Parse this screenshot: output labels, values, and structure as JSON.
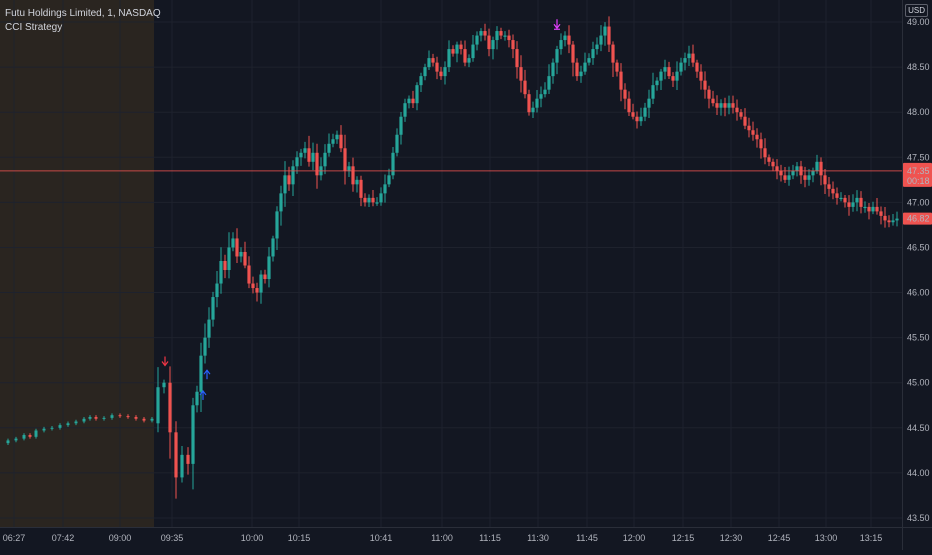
{
  "legend": {
    "symbol_line": "Futu Holdings Limited, 1, NASDAQ",
    "study_line": "CCI Strategy"
  },
  "currency_label": "USD",
  "price_tag": {
    "price": "47.35",
    "countdown": "00:18"
  },
  "last_price_tag": "46.82",
  "colors": {
    "background": "#131722",
    "grid": "#1e222d",
    "up": "#26a69a",
    "down": "#ef5350",
    "premarket_bg": "#2a2520",
    "price_line": "#ef5350",
    "long_arrow": "#2962ff",
    "short_arrow": "#f23645",
    "exit_arrow": "#e040fb"
  },
  "chart_data": {
    "type": "candlestick",
    "y_range": [
      43.4,
      49.2
    ],
    "y_ticks": [
      "43.50",
      "44.00",
      "44.50",
      "45.00",
      "45.50",
      "46.00",
      "46.50",
      "47.00",
      "47.50",
      "48.00",
      "48.50",
      "49.00"
    ],
    "x_ticks": [
      "06:27",
      "07:42",
      "09:00",
      "09:35",
      "10:00",
      "10:15",
      "10:41",
      "11:00",
      "11:15",
      "11:30",
      "11:45",
      "12:00",
      "12:15",
      "12:30",
      "12:45",
      "13:00",
      "13:15"
    ],
    "premarket_until": "09:30",
    "current_price": 47.35,
    "last_price": 46.82,
    "premarket_path": [
      [
        0,
        44.33
      ],
      [
        8,
        44.36
      ],
      [
        16,
        44.38
      ],
      [
        24,
        44.42
      ],
      [
        30,
        44.4
      ],
      [
        36,
        44.47
      ],
      [
        44,
        44.49
      ],
      [
        52,
        44.5
      ],
      [
        60,
        44.53
      ],
      [
        68,
        44.55
      ],
      [
        76,
        44.57
      ],
      [
        84,
        44.6
      ],
      [
        90,
        44.62
      ],
      [
        96,
        44.6
      ],
      [
        104,
        44.61
      ],
      [
        112,
        44.64
      ],
      [
        120,
        44.63
      ],
      [
        128,
        44.62
      ],
      [
        136,
        44.6
      ],
      [
        144,
        44.58
      ],
      [
        152,
        44.6
      ]
    ],
    "price_path": [
      [
        154,
        44.55
      ],
      [
        160,
        44.95
      ],
      [
        166,
        45.0
      ],
      [
        172,
        44.45
      ],
      [
        178,
        43.95
      ],
      [
        184,
        44.2
      ],
      [
        190,
        44.1
      ],
      [
        194,
        44.75
      ],
      [
        198,
        44.9
      ],
      [
        202,
        45.3
      ],
      [
        206,
        45.5
      ],
      [
        210,
        45.7
      ],
      [
        214,
        45.95
      ],
      [
        218,
        46.1
      ],
      [
        222,
        46.35
      ],
      [
        226,
        46.25
      ],
      [
        230,
        46.5
      ],
      [
        234,
        46.6
      ],
      [
        238,
        46.4
      ],
      [
        242,
        46.45
      ],
      [
        246,
        46.3
      ],
      [
        250,
        46.1
      ],
      [
        254,
        46.05
      ],
      [
        258,
        46.0
      ],
      [
        262,
        46.2
      ],
      [
        266,
        46.15
      ],
      [
        270,
        46.4
      ],
      [
        274,
        46.6
      ],
      [
        278,
        46.9
      ],
      [
        282,
        47.1
      ],
      [
        286,
        47.3
      ],
      [
        290,
        47.2
      ],
      [
        294,
        47.4
      ],
      [
        298,
        47.5
      ],
      [
        302,
        47.55
      ],
      [
        306,
        47.6
      ],
      [
        310,
        47.45
      ],
      [
        314,
        47.55
      ],
      [
        318,
        47.3
      ],
      [
        322,
        47.4
      ],
      [
        326,
        47.55
      ],
      [
        330,
        47.65
      ],
      [
        334,
        47.7
      ],
      [
        338,
        47.75
      ],
      [
        342,
        47.6
      ],
      [
        346,
        47.35
      ],
      [
        350,
        47.4
      ],
      [
        354,
        47.2
      ],
      [
        358,
        47.25
      ],
      [
        362,
        47.05
      ],
      [
        366,
        47.0
      ],
      [
        370,
        47.05
      ],
      [
        374,
        47.0
      ],
      [
        378,
        47.0
      ],
      [
        382,
        47.1
      ],
      [
        386,
        47.2
      ],
      [
        390,
        47.3
      ],
      [
        394,
        47.55
      ],
      [
        398,
        47.75
      ],
      [
        402,
        47.95
      ],
      [
        406,
        48.1
      ],
      [
        410,
        48.15
      ],
      [
        414,
        48.1
      ],
      [
        418,
        48.3
      ],
      [
        422,
        48.4
      ],
      [
        426,
        48.5
      ],
      [
        430,
        48.6
      ],
      [
        434,
        48.55
      ],
      [
        438,
        48.45
      ],
      [
        442,
        48.4
      ],
      [
        446,
        48.5
      ],
      [
        450,
        48.7
      ],
      [
        454,
        48.65
      ],
      [
        458,
        48.75
      ],
      [
        462,
        48.7
      ],
      [
        466,
        48.55
      ],
      [
        470,
        48.6
      ],
      [
        474,
        48.75
      ],
      [
        478,
        48.85
      ],
      [
        482,
        48.9
      ],
      [
        486,
        48.85
      ],
      [
        490,
        48.7
      ],
      [
        494,
        48.8
      ],
      [
        498,
        48.9
      ],
      [
        502,
        48.85
      ],
      [
        506,
        48.85
      ],
      [
        510,
        48.8
      ],
      [
        514,
        48.7
      ],
      [
        518,
        48.5
      ],
      [
        522,
        48.35
      ],
      [
        526,
        48.2
      ],
      [
        530,
        48.0
      ],
      [
        534,
        48.05
      ],
      [
        538,
        48.15
      ],
      [
        542,
        48.2
      ],
      [
        546,
        48.25
      ],
      [
        550,
        48.4
      ],
      [
        554,
        48.55
      ],
      [
        558,
        48.7
      ],
      [
        562,
        48.8
      ],
      [
        566,
        48.85
      ],
      [
        570,
        48.75
      ],
      [
        574,
        48.55
      ],
      [
        578,
        48.4
      ],
      [
        582,
        48.45
      ],
      [
        586,
        48.55
      ],
      [
        590,
        48.6
      ],
      [
        594,
        48.7
      ],
      [
        598,
        48.75
      ],
      [
        602,
        48.85
      ],
      [
        606,
        48.95
      ],
      [
        610,
        48.75
      ],
      [
        614,
        48.55
      ],
      [
        618,
        48.45
      ],
      [
        622,
        48.25
      ],
      [
        626,
        48.15
      ],
      [
        630,
        48.0
      ],
      [
        634,
        47.95
      ],
      [
        638,
        47.9
      ],
      [
        642,
        47.95
      ],
      [
        646,
        48.05
      ],
      [
        650,
        48.15
      ],
      [
        654,
        48.3
      ],
      [
        658,
        48.35
      ],
      [
        662,
        48.45
      ],
      [
        666,
        48.5
      ],
      [
        670,
        48.4
      ],
      [
        674,
        48.35
      ],
      [
        678,
        48.45
      ],
      [
        682,
        48.55
      ],
      [
        686,
        48.6
      ],
      [
        690,
        48.65
      ],
      [
        694,
        48.55
      ],
      [
        698,
        48.45
      ],
      [
        702,
        48.35
      ],
      [
        706,
        48.25
      ],
      [
        710,
        48.15
      ],
      [
        714,
        48.1
      ],
      [
        718,
        48.05
      ],
      [
        722,
        48.1
      ],
      [
        726,
        48.05
      ],
      [
        730,
        48.1
      ],
      [
        734,
        48.05
      ],
      [
        738,
        48.0
      ],
      [
        742,
        47.95
      ],
      [
        746,
        47.85
      ],
      [
        750,
        47.8
      ],
      [
        754,
        47.75
      ],
      [
        758,
        47.7
      ],
      [
        762,
        47.6
      ],
      [
        766,
        47.5
      ],
      [
        770,
        47.45
      ],
      [
        774,
        47.4
      ],
      [
        778,
        47.35
      ],
      [
        782,
        47.3
      ],
      [
        786,
        47.25
      ],
      [
        790,
        47.3
      ],
      [
        794,
        47.35
      ],
      [
        798,
        47.4
      ],
      [
        802,
        47.3
      ],
      [
        806,
        47.25
      ],
      [
        810,
        47.3
      ],
      [
        814,
        47.35
      ],
      [
        818,
        47.45
      ],
      [
        822,
        47.3
      ],
      [
        826,
        47.2
      ],
      [
        830,
        47.15
      ],
      [
        834,
        47.1
      ],
      [
        838,
        47.05
      ],
      [
        842,
        47.05
      ],
      [
        846,
        47.0
      ],
      [
        850,
        46.95
      ],
      [
        854,
        47.0
      ],
      [
        858,
        47.05
      ],
      [
        862,
        46.95
      ],
      [
        866,
        46.95
      ],
      [
        870,
        46.9
      ],
      [
        874,
        46.95
      ],
      [
        878,
        46.9
      ],
      [
        882,
        46.85
      ],
      [
        886,
        46.8
      ],
      [
        890,
        46.78
      ],
      [
        894,
        46.8
      ],
      [
        898,
        46.82
      ]
    ],
    "signals": [
      {
        "type": "short",
        "x": 165,
        "price": 45.18
      },
      {
        "type": "long",
        "x": 203,
        "price": 44.92
      },
      {
        "type": "long",
        "x": 207,
        "price": 45.15
      },
      {
        "type": "exit",
        "x": 557,
        "price": 48.92
      }
    ]
  }
}
